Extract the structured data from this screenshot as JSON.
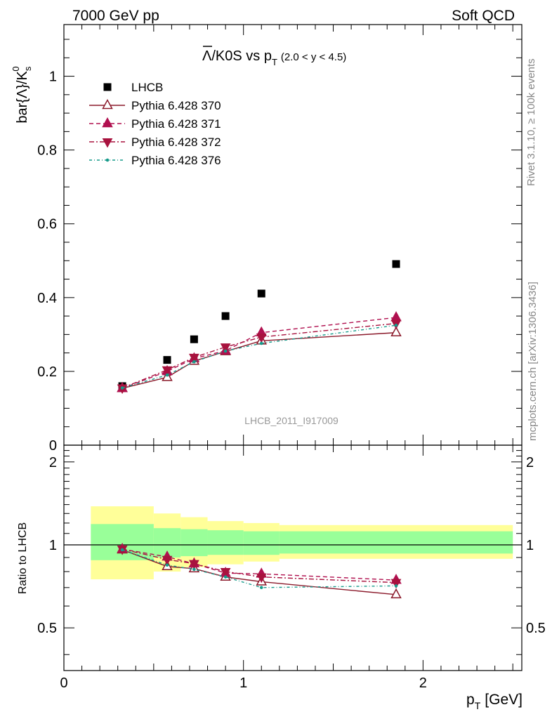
{
  "header": {
    "left": "7000 GeV pp",
    "right": "Soft QCD"
  },
  "side_labels": {
    "rivet": "Rivet 3.1.10, ≥ 100k events",
    "mcplots": "mcplots.cern.ch [arXiv:1306.3436]"
  },
  "watermark": "LHCB_2011_I917009",
  "colors": {
    "lhcb": "#000000",
    "py370": "#8b1a2b",
    "py371": "#b0104f",
    "py372": "#a8123e",
    "py376": "#159a8a",
    "band_inner": "#99ff99",
    "band_outer": "#ffff99"
  },
  "chart_data": [
    {
      "type": "scatter",
      "panel": "main",
      "title": {
        "main": "Λ/K0S vs p",
        "sub": "T",
        "range": "(2.0 < y < 4.5)"
      },
      "ylabel": {
        "main": "bar{Λ}/K",
        "sup": "0",
        "sub": "s"
      },
      "xlim": [
        0,
        2.55
      ],
      "ylim": [
        0,
        1.14
      ],
      "yticks": [
        0,
        0.2,
        0.4,
        0.6,
        0.8,
        1
      ],
      "ytick_labels": [
        "0",
        "0.2",
        "0.4",
        "0.6",
        "0.8",
        "1"
      ],
      "legend_position": "top-left",
      "series": [
        {
          "name": "LHCB",
          "marker": "square",
          "x": [
            0.325,
            0.575,
            0.725,
            0.9,
            1.1,
            1.85
          ],
          "y": [
            0.16,
            0.231,
            0.287,
            0.35,
            0.411,
            0.491
          ]
        },
        {
          "name": "Pythia 6.428 370",
          "marker": "triangle-up-open",
          "line": "solid",
          "x": [
            0.325,
            0.575,
            0.725,
            0.9,
            1.1,
            1.85
          ],
          "y": [
            0.154,
            0.184,
            0.228,
            0.254,
            0.283,
            0.305
          ]
        },
        {
          "name": "Pythia 6.428 371",
          "marker": "triangle-up",
          "line": "dashed",
          "x": [
            0.325,
            0.575,
            0.725,
            0.9,
            1.1,
            1.85
          ],
          "y": [
            0.154,
            0.2,
            0.235,
            0.256,
            0.305,
            0.346
          ]
        },
        {
          "name": "Pythia 6.428 372",
          "marker": "triangle-down",
          "line": "dashdot",
          "x": [
            0.325,
            0.575,
            0.725,
            0.9,
            1.1,
            1.85
          ],
          "y": [
            0.155,
            0.204,
            0.238,
            0.266,
            0.293,
            0.33
          ]
        },
        {
          "name": "Pythia 6.428 376",
          "marker": "dot",
          "line": "dashdot-fine",
          "x": [
            0.325,
            0.575,
            0.725,
            0.9,
            1.1,
            1.85
          ],
          "y": [
            0.155,
            0.19,
            0.226,
            0.255,
            0.276,
            0.325
          ]
        }
      ]
    },
    {
      "type": "line",
      "panel": "ratio",
      "ylabel": "Ratio to LHCB",
      "xlabel": {
        "main": "p",
        "sub": "T",
        "unit": "[GeV]"
      },
      "xlim": [
        0,
        2.55
      ],
      "ylim": [
        0.35,
        2.3
      ],
      "xticks": [
        0,
        1,
        2
      ],
      "xtick_labels": [
        "0",
        "1",
        "2"
      ],
      "yticks": [
        0.5,
        1,
        2
      ],
      "ytick_labels": [
        "0.5",
        "1",
        "2"
      ],
      "bands": {
        "x_edges": [
          0.15,
          0.5,
          0.65,
          0.8,
          1.0,
          1.2,
          2.5
        ],
        "inner": [
          [
            0.88,
            1.19
          ],
          [
            0.9,
            1.15
          ],
          [
            0.91,
            1.14
          ],
          [
            0.92,
            1.13
          ],
          [
            0.92,
            1.12
          ],
          [
            0.93,
            1.12
          ]
        ],
        "outer": [
          [
            0.75,
            1.38
          ],
          [
            0.8,
            1.3
          ],
          [
            0.83,
            1.26
          ],
          [
            0.85,
            1.22
          ],
          [
            0.87,
            1.2
          ],
          [
            0.89,
            1.18
          ]
        ]
      },
      "series": [
        {
          "name": "Pythia 6.428 370",
          "x": [
            0.325,
            0.575,
            0.725,
            0.9,
            1.1,
            1.85
          ],
          "y": [
            0.96,
            0.835,
            0.82,
            0.765,
            0.735,
            0.66
          ]
        },
        {
          "name": "Pythia 6.428 371",
          "x": [
            0.325,
            0.575,
            0.725,
            0.9,
            1.1,
            1.85
          ],
          "y": [
            0.965,
            0.905,
            0.855,
            0.79,
            0.785,
            0.745
          ]
        },
        {
          "name": "Pythia 6.428 372",
          "x": [
            0.325,
            0.575,
            0.725,
            0.9,
            1.1,
            1.85
          ],
          "y": [
            0.965,
            0.885,
            0.855,
            0.8,
            0.765,
            0.73
          ]
        },
        {
          "name": "Pythia 6.428 376",
          "x": [
            0.325,
            0.575,
            0.725,
            0.9,
            1.1,
            1.85
          ],
          "y": [
            0.96,
            0.845,
            0.815,
            0.765,
            0.7,
            0.71
          ]
        }
      ]
    }
  ]
}
